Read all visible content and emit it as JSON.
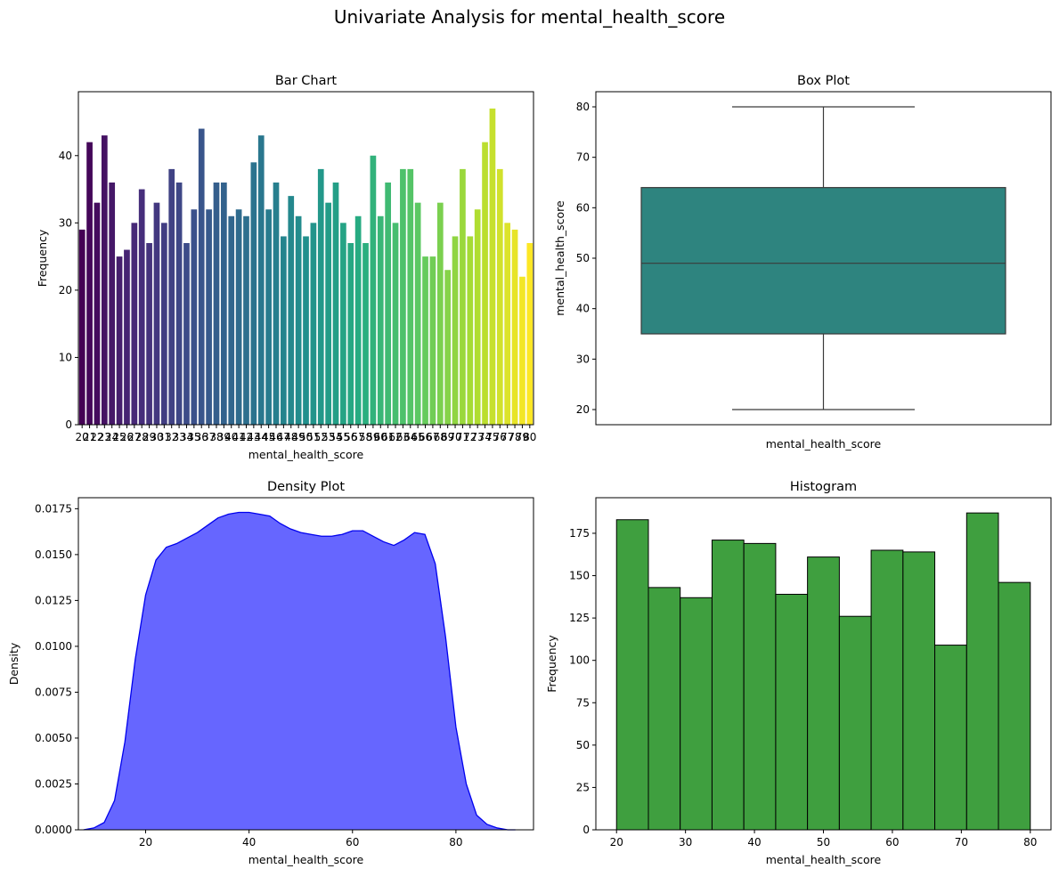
{
  "figure": {
    "suptitle": "Univariate Analysis for mental_health_score"
  },
  "chart_data": [
    {
      "id": "bar",
      "type": "bar",
      "title": "Bar Chart",
      "xlabel": "mental_health_score",
      "ylabel": "Frequency",
      "ylim": [
        0,
        49.5
      ],
      "yticks": [
        0,
        10,
        20,
        30,
        40
      ],
      "categories": [
        20,
        21,
        22,
        23,
        24,
        25,
        26,
        27,
        28,
        29,
        30,
        31,
        32,
        33,
        34,
        35,
        36,
        37,
        38,
        39,
        40,
        41,
        42,
        43,
        44,
        45,
        46,
        47,
        48,
        49,
        50,
        51,
        52,
        53,
        54,
        55,
        56,
        57,
        58,
        59,
        60,
        61,
        62,
        63,
        64,
        65,
        66,
        67,
        68,
        69,
        70,
        71,
        72,
        73,
        74,
        75,
        76,
        77,
        78,
        79,
        80
      ],
      "values": [
        29,
        42,
        33,
        43,
        36,
        25,
        26,
        30,
        35,
        27,
        33,
        30,
        38,
        36,
        27,
        32,
        44,
        32,
        36,
        36,
        31,
        32,
        31,
        39,
        43,
        32,
        36,
        28,
        34,
        31,
        28,
        30,
        38,
        33,
        36,
        30,
        27,
        31,
        27,
        40,
        31,
        36,
        30,
        38,
        38,
        33,
        25,
        25,
        33,
        23,
        28,
        38,
        28,
        32,
        42,
        47,
        38,
        30,
        29,
        22,
        27
      ],
      "palette": "viridis",
      "grid": false
    },
    {
      "id": "box",
      "type": "box",
      "title": "Box Plot",
      "xlabel": "mental_health_score",
      "ylabel": "mental_health_score",
      "ylim": [
        17,
        83
      ],
      "yticks": [
        20,
        30,
        40,
        50,
        60,
        70,
        80
      ],
      "stats": {
        "min": 20,
        "q1": 35,
        "median": 49,
        "q3": 64,
        "max": 80
      },
      "color": "#2e847f",
      "grid": false
    },
    {
      "id": "density",
      "type": "area",
      "title": "Density Plot",
      "xlabel": "mental_health_score",
      "ylabel": "Density",
      "xlim": [
        7,
        95
      ],
      "ylim": [
        0,
        0.0181
      ],
      "xticks": [
        20,
        40,
        60,
        80
      ],
      "yticks": [
        0.0,
        0.0025,
        0.005,
        0.0075,
        0.01,
        0.0125,
        0.015,
        0.0175
      ],
      "ytick_labels": [
        "0.0000",
        "0.0025",
        "0.0050",
        "0.0075",
        "0.0100",
        "0.0125",
        "0.0150",
        "0.0175"
      ],
      "x": [
        8,
        10,
        12,
        14,
        16,
        18,
        20,
        22,
        24,
        26,
        28,
        30,
        32,
        34,
        36,
        38,
        40,
        42,
        44,
        46,
        48,
        50,
        52,
        54,
        56,
        58,
        60,
        62,
        64,
        66,
        68,
        70,
        72,
        74,
        76,
        78,
        80,
        82,
        84,
        86,
        88,
        90,
        91.5
      ],
      "y": [
        0.0,
        0.0001,
        0.0004,
        0.0016,
        0.0048,
        0.0093,
        0.0128,
        0.0147,
        0.0154,
        0.0156,
        0.0159,
        0.0162,
        0.0166,
        0.017,
        0.0172,
        0.0173,
        0.0173,
        0.0172,
        0.0171,
        0.0167,
        0.0164,
        0.0162,
        0.0161,
        0.016,
        0.016,
        0.0161,
        0.0163,
        0.0163,
        0.016,
        0.0157,
        0.0155,
        0.0158,
        0.0162,
        0.0161,
        0.0145,
        0.0105,
        0.0056,
        0.0025,
        0.0008,
        0.0003,
        0.0001,
        0.0,
        0.0
      ],
      "fill": "#6666ff",
      "line": "#0000ee",
      "grid": false
    },
    {
      "id": "hist",
      "type": "bar",
      "title": "Histogram",
      "xlabel": "mental_health_score",
      "ylabel": "Frequency",
      "xlim": [
        17,
        83
      ],
      "ylim": [
        0,
        196
      ],
      "xticks": [
        20,
        30,
        40,
        50,
        60,
        70,
        80
      ],
      "yticks": [
        0,
        25,
        50,
        75,
        100,
        125,
        150,
        175
      ],
      "bin_edges": [
        20,
        24.62,
        29.23,
        33.85,
        38.46,
        43.08,
        47.69,
        52.31,
        56.92,
        61.54,
        66.15,
        70.77,
        75.38,
        80
      ],
      "counts": [
        183,
        143,
        137,
        171,
        169,
        139,
        161,
        126,
        165,
        164,
        109,
        187,
        146
      ],
      "fill": "#3f9f3f",
      "grid": false
    }
  ]
}
